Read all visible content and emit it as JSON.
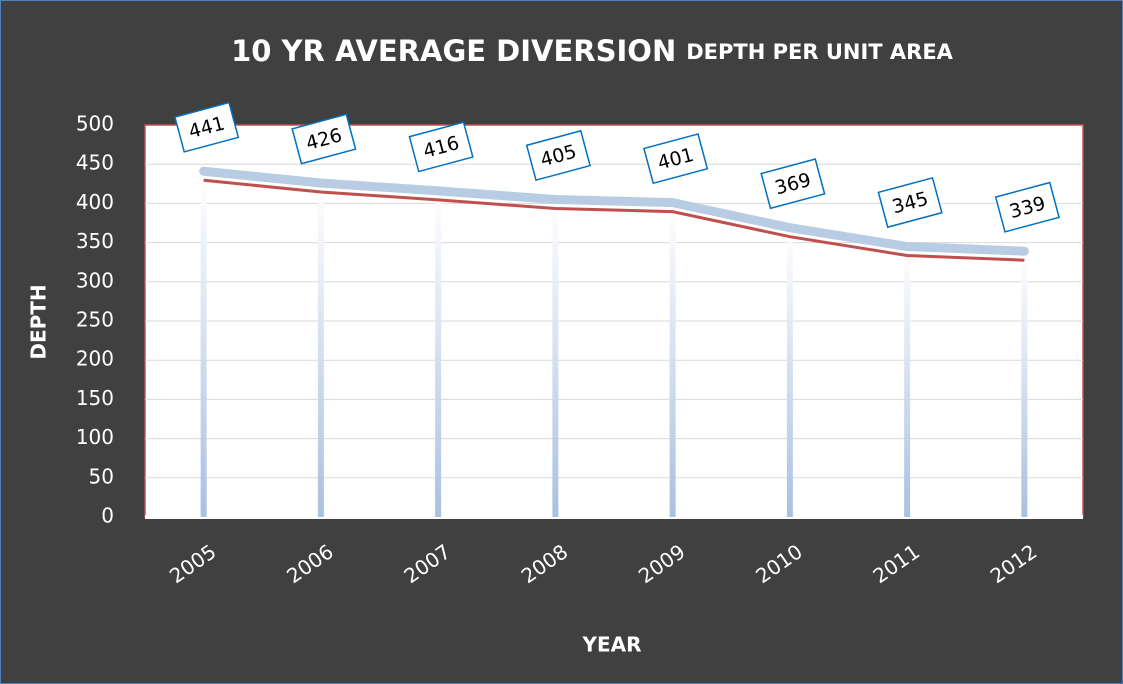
{
  "chart_data": {
    "type": "line",
    "title_parts": [
      "10 YR AVERAGE DIVERSION",
      "DEPTH PER UNIT AREA"
    ],
    "x_label": "YEAR",
    "y_label": "DEPTH",
    "categories": [
      "2005",
      "2006",
      "2007",
      "2008",
      "2009",
      "2010",
      "2011",
      "2012"
    ],
    "series": [
      {
        "color": "#b8cce4",
        "values": [
          441,
          426,
          416,
          405,
          401,
          369,
          345,
          339
        ]
      }
    ],
    "ylim": [
      0,
      500
    ],
    "yticks": [
      0,
      50,
      100,
      150,
      200,
      250,
      300,
      350,
      400,
      450,
      500
    ],
    "grid": true
  }
}
